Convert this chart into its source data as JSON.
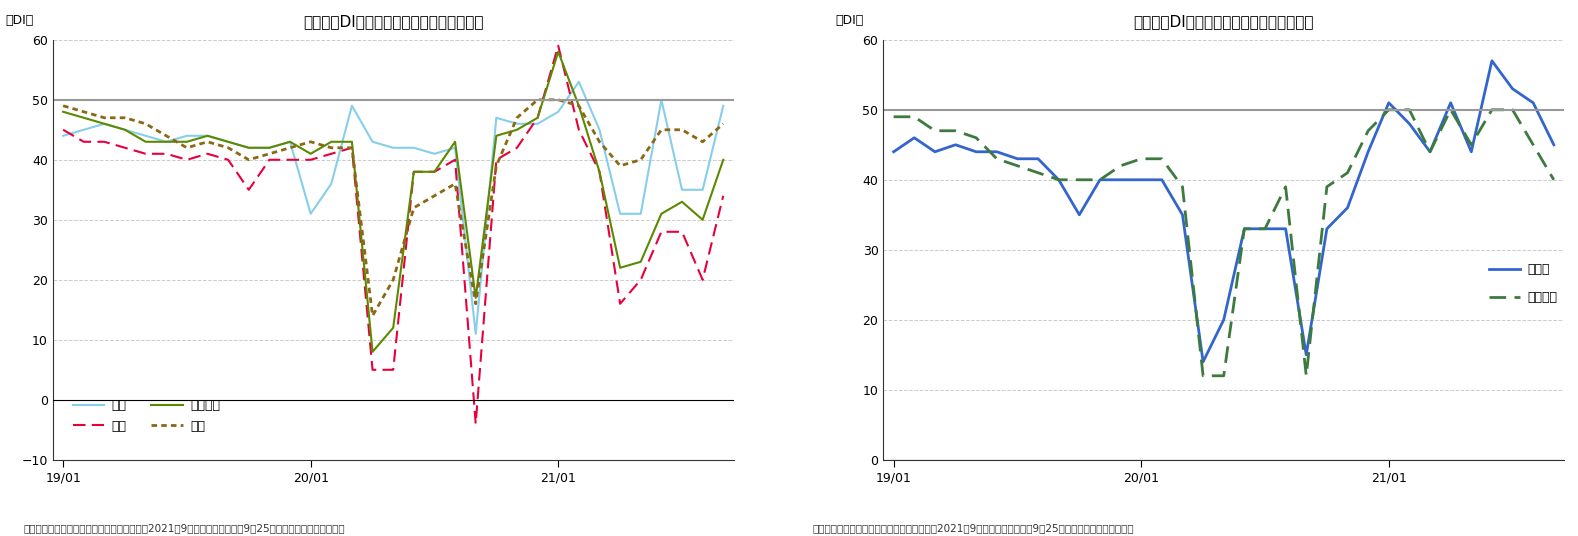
{
  "chart1": {
    "title": "現状判断DI（家計動向関連）の内訳の推移",
    "ylabel": "（DI）",
    "footnote": "（出所）内閣府「景気ウォッチャー調査」（2021年9月調査、調査期間：9月25日から月末、季節調整値）",
    "x_ticks_labels": [
      "19/01",
      "20/01",
      "21/01"
    ],
    "x_ticks_pos": [
      0,
      12,
      24
    ],
    "n_points": 33,
    "ylim": [
      -10,
      60
    ],
    "yticks": [
      -10,
      0,
      10,
      20,
      30,
      40,
      50,
      60
    ],
    "hline": 50,
    "series": {
      "kouri": {
        "label": "小売",
        "color": "#87CEEB",
        "linestyle": "solid",
        "linewidth": 1.5,
        "values": [
          44,
          45,
          46,
          45,
          44,
          43,
          44,
          44,
          43,
          42,
          42,
          43,
          31,
          36,
          49,
          43,
          42,
          42,
          41,
          42,
          11,
          47,
          46,
          46,
          48,
          53,
          45,
          31,
          31,
          50,
          35,
          35,
          49
        ]
      },
      "inshoku": {
        "label": "飲食",
        "color": "#E8003C",
        "linestyle": "dashed",
        "linewidth": 1.5,
        "values": [
          45,
          43,
          43,
          42,
          41,
          41,
          40,
          41,
          40,
          35,
          40,
          40,
          40,
          41,
          42,
          5,
          5,
          38,
          38,
          40,
          -4,
          40,
          42,
          47,
          59,
          45,
          38,
          16,
          20,
          28,
          28,
          20,
          34
        ]
      },
      "service": {
        "label": "サービス",
        "color": "#5B8A00",
        "linestyle": "solid",
        "linewidth": 1.5,
        "values": [
          48,
          47,
          46,
          45,
          43,
          43,
          43,
          44,
          43,
          42,
          42,
          43,
          41,
          43,
          43,
          8,
          12,
          38,
          38,
          43,
          17,
          44,
          45,
          47,
          58,
          49,
          38,
          22,
          23,
          31,
          33,
          30,
          40
        ]
      },
      "jutaku": {
        "label": "住宅",
        "color": "#8B6914",
        "linestyle": "dotted",
        "linewidth": 2.0,
        "values": [
          49,
          48,
          47,
          47,
          46,
          44,
          42,
          43,
          42,
          40,
          41,
          42,
          43,
          42,
          42,
          14,
          20,
          32,
          34,
          36,
          16,
          39,
          47,
          50,
          50,
          49,
          43,
          39,
          40,
          45,
          45,
          43,
          46
        ]
      }
    }
  },
  "chart2": {
    "title": "現状判断DI（企業動向関連）の内訳の推移",
    "ylabel": "（DI）",
    "footnote": "（出所）内閣府「景気ウォッチャー調査」（2021年9月調査、調査期間：9月25日から月末、季節調整値）",
    "x_ticks_labels": [
      "19/01",
      "20/01",
      "21/01"
    ],
    "x_ticks_pos": [
      0,
      12,
      24
    ],
    "n_points": 33,
    "ylim": [
      0,
      60
    ],
    "yticks": [
      0,
      10,
      20,
      30,
      40,
      50,
      60
    ],
    "hline": 50,
    "series": {
      "seizogyo": {
        "label": "製造業",
        "color": "#3366CC",
        "linestyle": "solid",
        "linewidth": 2.0,
        "values": [
          44,
          46,
          44,
          45,
          44,
          44,
          43,
          43,
          40,
          35,
          40,
          40,
          40,
          40,
          35,
          14,
          20,
          33,
          33,
          33,
          15,
          33,
          36,
          44,
          51,
          48,
          44,
          51,
          44,
          57,
          53,
          51,
          45
        ]
      },
      "hi_seizogyo": {
        "label": "非製造業",
        "color": "#3D7A3D",
        "linestyle": "dashed",
        "linewidth": 2.0,
        "values": [
          49,
          49,
          47,
          47,
          46,
          43,
          42,
          41,
          40,
          40,
          40,
          42,
          43,
          43,
          39,
          12,
          12,
          33,
          33,
          39,
          12,
          39,
          41,
          47,
          50,
          50,
          44,
          50,
          45,
          50,
          50,
          45,
          40
        ]
      }
    }
  }
}
